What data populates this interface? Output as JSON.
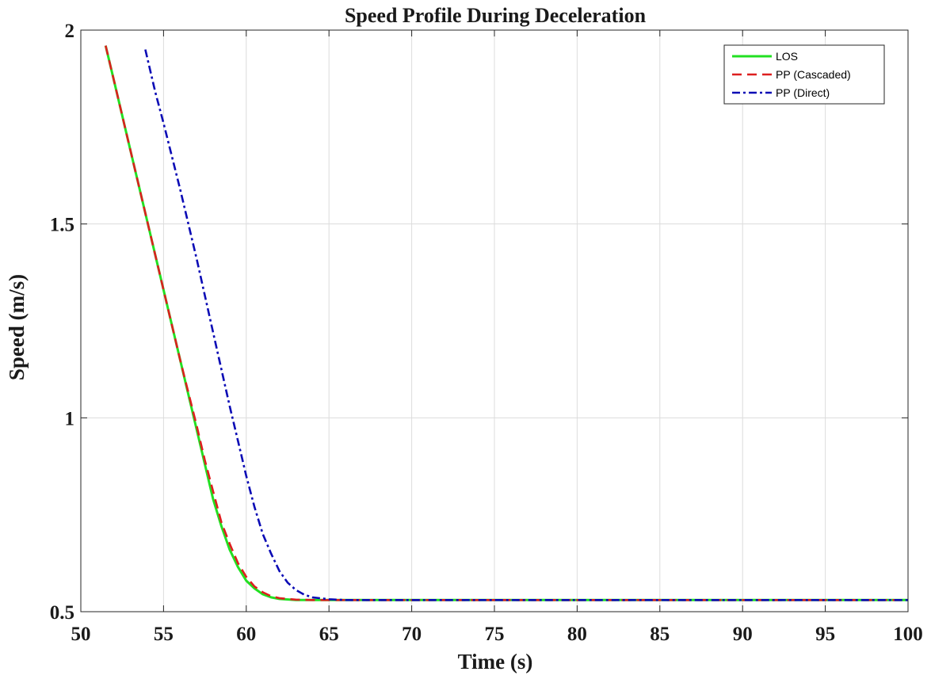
{
  "chart_data": {
    "type": "line",
    "title": "Speed Profile During Deceleration",
    "xlabel": "Time (s)",
    "ylabel": "Speed (m/s)",
    "xlim": [
      50,
      100
    ],
    "ylim": [
      0.5,
      2
    ],
    "xticks": [
      50,
      55,
      60,
      65,
      70,
      75,
      80,
      85,
      90,
      95,
      100
    ],
    "yticks": [
      0.5,
      1,
      1.5,
      2
    ],
    "xtick_labels": [
      "50",
      "55",
      "60",
      "65",
      "70",
      "75",
      "80",
      "85",
      "90",
      "95",
      "100"
    ],
    "ytick_labels": [
      "0.5",
      "1",
      "1.5",
      "2"
    ],
    "grid": true,
    "legend_position": "top-right",
    "series": [
      {
        "name": "LOS",
        "color": "#22e022",
        "style": "solid",
        "x": [
          51.5,
          52,
          53,
          54,
          55,
          56,
          57,
          57.5,
          58,
          58.5,
          59,
          59.5,
          60,
          60.5,
          61,
          61.5,
          62,
          63,
          64,
          65,
          70,
          80,
          90,
          100
        ],
        "y": [
          1.96,
          1.87,
          1.69,
          1.51,
          1.33,
          1.15,
          0.97,
          0.88,
          0.79,
          0.72,
          0.66,
          0.615,
          0.58,
          0.56,
          0.545,
          0.537,
          0.533,
          0.53,
          0.53,
          0.53,
          0.53,
          0.53,
          0.53,
          0.53
        ]
      },
      {
        "name": "PP (Cascaded)",
        "color": "#dd1f1f",
        "style": "dashed",
        "x": [
          51.5,
          52,
          53,
          54,
          55,
          56,
          57,
          57.5,
          58,
          58.5,
          59,
          59.5,
          60,
          60.5,
          61,
          61.5,
          62,
          63,
          64,
          65,
          70,
          80,
          90,
          100
        ],
        "y": [
          1.96,
          1.87,
          1.69,
          1.51,
          1.33,
          1.15,
          0.98,
          0.89,
          0.81,
          0.73,
          0.675,
          0.625,
          0.59,
          0.565,
          0.55,
          0.54,
          0.535,
          0.531,
          0.53,
          0.53,
          0.53,
          0.53,
          0.53,
          0.53
        ]
      },
      {
        "name": "PP (Direct)",
        "color": "#0b0bb5",
        "style": "dashdot",
        "x": [
          53.9,
          54.5,
          55,
          56,
          57,
          58,
          59,
          59.5,
          60,
          60.5,
          61,
          61.5,
          62,
          62.5,
          63,
          63.5,
          64,
          65,
          66,
          67,
          70,
          80,
          90,
          100
        ],
        "y": [
          1.95,
          1.84,
          1.76,
          1.59,
          1.41,
          1.22,
          1.03,
          0.94,
          0.85,
          0.77,
          0.7,
          0.65,
          0.605,
          0.575,
          0.556,
          0.544,
          0.537,
          0.532,
          0.53,
          0.53,
          0.53,
          0.53,
          0.53,
          0.53
        ]
      }
    ]
  }
}
